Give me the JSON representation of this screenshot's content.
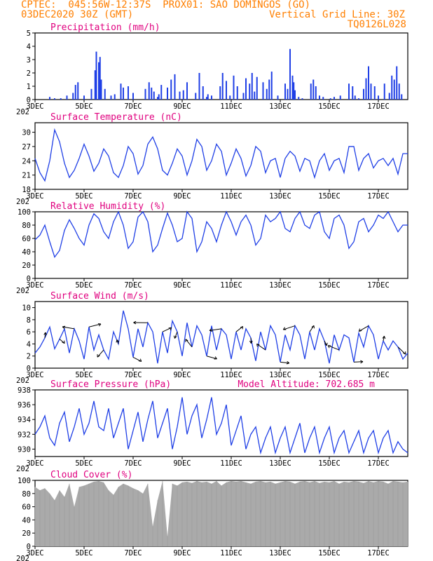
{
  "header": {
    "line1": "CPTEC:  045:56W-12:37S  PROX01: SAO DOMINGOS (GO)",
    "line2_left": "03DEC2020 30Z (GMT)",
    "line2_right": "Vertical Grid Line: 30Z",
    "line3_right": "TQ0126L028"
  },
  "colors": {
    "header": "#ff7f00",
    "title": "#e0007f",
    "line": "#1f3fe6",
    "bar": "#1f3fe6",
    "cloud": "#aaaaaa",
    "wind_arrow": "#000000"
  },
  "x_ticks": [
    "3DEC",
    "5DEC",
    "7DEC",
    "9DEC",
    "11DEC",
    "13DEC",
    "15DEC",
    "17DEC"
  ],
  "x_ticks_extra": "202",
  "chart_data": [
    {
      "id": "precip",
      "type": "bar",
      "title": "Precipitation (mm/h)",
      "ylim": [
        0,
        5
      ],
      "yticks": [
        0,
        1,
        2,
        3,
        4,
        5
      ],
      "x_range_days": [
        3,
        18.2
      ],
      "x": [
        3.6,
        3.8,
        4.05,
        4.3,
        4.55,
        4.65,
        4.75,
        5.0,
        5.3,
        5.45,
        5.5,
        5.6,
        5.65,
        5.7,
        5.85,
        6.1,
        6.25,
        6.5,
        6.6,
        6.8,
        7.0,
        7.5,
        7.65,
        7.75,
        7.85,
        8.0,
        8.05,
        8.15,
        8.4,
        8.55,
        8.7,
        8.9,
        9.05,
        9.2,
        9.55,
        9.7,
        9.85,
        10.0,
        10.05,
        10.2,
        10.55,
        10.65,
        10.8,
        10.95,
        11.1,
        11.25,
        11.5,
        11.6,
        11.75,
        11.85,
        11.95,
        12.05,
        12.3,
        12.45,
        12.55,
        12.65,
        12.9,
        13.2,
        13.3,
        13.4,
        13.5,
        13.55,
        13.6,
        13.75,
        13.9,
        14.25,
        14.35,
        14.45,
        14.6,
        14.75,
        15.05,
        15.2,
        15.45,
        15.8,
        15.95,
        16.05,
        16.2,
        16.4,
        16.5,
        16.6,
        16.7,
        16.85,
        17.0,
        17.25,
        17.45,
        17.55,
        17.65,
        17.75,
        17.85,
        17.95
      ],
      "values": [
        0.2,
        0.1,
        0.1,
        0.3,
        0.5,
        1.1,
        1.3,
        0.3,
        0.8,
        2.2,
        3.6,
        2.8,
        3.2,
        1.5,
        0.8,
        0.3,
        0.4,
        1.2,
        0.9,
        1.0,
        0.5,
        0.8,
        1.3,
        0.9,
        0.6,
        0.2,
        0.4,
        1.1,
        0.9,
        1.5,
        1.9,
        0.6,
        0.7,
        1.3,
        0.5,
        2.0,
        1.0,
        0.2,
        0.4,
        0.3,
        1.0,
        2.0,
        1.4,
        0.3,
        1.8,
        1.0,
        0.5,
        1.6,
        1.2,
        2.0,
        0.6,
        1.7,
        1.3,
        0.8,
        1.5,
        2.1,
        0.3,
        1.2,
        0.8,
        3.8,
        1.8,
        1.3,
        0.7,
        0.2,
        0.1,
        1.2,
        1.5,
        1.0,
        0.3,
        0.2,
        0.1,
        0.2,
        0.3,
        1.2,
        1.0,
        0.3,
        0.1,
        0.8,
        1.6,
        2.5,
        1.2,
        1.0,
        0.3,
        1.2,
        0.5,
        1.8,
        1.5,
        2.5,
        1.2,
        0.4
      ]
    },
    {
      "id": "temp",
      "type": "line",
      "title": "Surface Temperature (nC)",
      "ylim": [
        18,
        32
      ],
      "yticks": [
        18,
        21,
        24,
        27,
        30
      ],
      "x_range_days": [
        3,
        18.2
      ],
      "x": [
        3.0,
        3.2,
        3.4,
        3.6,
        3.8,
        4.0,
        4.2,
        4.4,
        4.6,
        4.8,
        5.0,
        5.2,
        5.4,
        5.6,
        5.8,
        6.0,
        6.2,
        6.4,
        6.6,
        6.8,
        7.0,
        7.2,
        7.4,
        7.6,
        7.8,
        8.0,
        8.2,
        8.4,
        8.6,
        8.8,
        9.0,
        9.2,
        9.4,
        9.6,
        9.8,
        10.0,
        10.2,
        10.4,
        10.6,
        10.8,
        11.0,
        11.2,
        11.4,
        11.6,
        11.8,
        12.0,
        12.2,
        12.4,
        12.6,
        12.8,
        13.0,
        13.2,
        13.4,
        13.6,
        13.8,
        14.0,
        14.2,
        14.4,
        14.6,
        14.8,
        15.0,
        15.2,
        15.4,
        15.6,
        15.8,
        16.0,
        16.2,
        16.4,
        16.6,
        16.8,
        17.0,
        17.2,
        17.4,
        17.6,
        17.8,
        18.0,
        18.2
      ],
      "values": [
        24.5,
        21.5,
        19.8,
        24.0,
        30.5,
        28.0,
        23.5,
        20.5,
        22.0,
        24.5,
        27.5,
        25.0,
        21.8,
        23.5,
        26.5,
        25.0,
        21.5,
        20.5,
        23.0,
        27.0,
        25.5,
        21.2,
        23.0,
        27.5,
        29.0,
        26.5,
        22.0,
        21.0,
        23.5,
        26.5,
        25.0,
        21.0,
        24.0,
        28.5,
        27.0,
        22.0,
        24.0,
        27.5,
        26.0,
        21.0,
        23.5,
        26.5,
        24.5,
        20.8,
        23.0,
        27.0,
        26.0,
        21.5,
        24.0,
        24.5,
        20.5,
        24.5,
        26.0,
        25.0,
        21.8,
        24.5,
        24.0,
        20.5,
        24.0,
        25.5,
        22.0,
        24.0,
        24.5,
        21.5,
        27.0,
        27.0,
        22.0,
        24.5,
        25.5,
        22.5,
        24.0,
        24.5,
        23.0,
        24.5,
        21.2,
        25.5,
        25.5
      ]
    },
    {
      "id": "rh",
      "type": "line",
      "title": "Relative Humidity (%)",
      "ylim": [
        0,
        100
      ],
      "yticks": [
        0,
        20,
        40,
        60,
        80,
        100
      ],
      "x_range_days": [
        3,
        18.2
      ],
      "x": [
        3.0,
        3.2,
        3.4,
        3.6,
        3.8,
        4.0,
        4.2,
        4.4,
        4.6,
        4.8,
        5.0,
        5.2,
        5.4,
        5.6,
        5.8,
        6.0,
        6.2,
        6.4,
        6.6,
        6.8,
        7.0,
        7.2,
        7.4,
        7.6,
        7.8,
        8.0,
        8.2,
        8.4,
        8.6,
        8.8,
        9.0,
        9.2,
        9.4,
        9.6,
        9.8,
        10.0,
        10.2,
        10.4,
        10.6,
        10.8,
        11.0,
        11.2,
        11.4,
        11.6,
        11.8,
        12.0,
        12.2,
        12.4,
        12.6,
        12.8,
        13.0,
        13.2,
        13.4,
        13.6,
        13.8,
        14.0,
        14.2,
        14.4,
        14.6,
        14.8,
        15.0,
        15.2,
        15.4,
        15.6,
        15.8,
        16.0,
        16.2,
        16.4,
        16.6,
        16.8,
        17.0,
        17.2,
        17.4,
        17.6,
        17.8,
        18.0,
        18.2
      ],
      "values": [
        58,
        65,
        80,
        55,
        32,
        42,
        72,
        88,
        75,
        60,
        50,
        80,
        97,
        90,
        70,
        60,
        85,
        100,
        80,
        45,
        55,
        92,
        100,
        85,
        40,
        50,
        75,
        98,
        80,
        55,
        60,
        100,
        90,
        40,
        55,
        85,
        75,
        55,
        80,
        100,
        85,
        65,
        85,
        95,
        80,
        50,
        60,
        95,
        85,
        90,
        100,
        75,
        70,
        90,
        100,
        80,
        75,
        95,
        100,
        70,
        60,
        90,
        95,
        80,
        45,
        55,
        85,
        90,
        70,
        80,
        95,
        90,
        100,
        85,
        70,
        80,
        80
      ]
    },
    {
      "id": "wind",
      "type": "line",
      "title": "Surface Wind (m/s)",
      "ylim": [
        0,
        11
      ],
      "yticks": [
        0,
        2,
        4,
        6,
        8,
        10
      ],
      "x_range_days": [
        3,
        18.2
      ],
      "x": [
        3.0,
        3.2,
        3.4,
        3.6,
        3.8,
        4.0,
        4.2,
        4.4,
        4.6,
        4.8,
        5.0,
        5.2,
        5.4,
        5.6,
        5.8,
        6.0,
        6.2,
        6.4,
        6.6,
        6.8,
        7.0,
        7.2,
        7.4,
        7.6,
        7.8,
        8.0,
        8.2,
        8.4,
        8.6,
        8.8,
        9.0,
        9.2,
        9.4,
        9.6,
        9.8,
        10.0,
        10.2,
        10.4,
        10.6,
        10.8,
        11.0,
        11.2,
        11.4,
        11.6,
        11.8,
        12.0,
        12.2,
        12.4,
        12.6,
        12.8,
        13.0,
        13.2,
        13.4,
        13.6,
        13.8,
        14.0,
        14.2,
        14.4,
        14.6,
        14.8,
        15.0,
        15.2,
        15.4,
        15.6,
        15.8,
        16.0,
        16.2,
        16.4,
        16.6,
        16.8,
        17.0,
        17.2,
        17.4,
        17.6,
        17.8,
        18.0,
        18.2
      ],
      "values": [
        2.5,
        3.5,
        5.0,
        6.8,
        3.2,
        4.8,
        6.5,
        2.5,
        6.5,
        4.5,
        1.5,
        6.8,
        3.0,
        5.5,
        3.0,
        1.5,
        6.0,
        4.0,
        9.5,
        6.5,
        1.8,
        6.5,
        3.5,
        7.5,
        6.0,
        0.8,
        6.0,
        2.5,
        7.8,
        6.0,
        2.0,
        7.5,
        3.5,
        7.0,
        5.5,
        2.0,
        7.0,
        3.0,
        6.5,
        5.5,
        1.5,
        6.0,
        3.0,
        6.5,
        5.0,
        1.2,
        6.0,
        3.0,
        7.0,
        5.5,
        1.0,
        5.5,
        3.0,
        7.0,
        5.5,
        1.5,
        6.0,
        3.0,
        6.5,
        4.5,
        0.8,
        5.5,
        3.0,
        5.5,
        5.0,
        1.0,
        5.8,
        3.5,
        7.0,
        5.5,
        1.5,
        4.5,
        3.0,
        4.5,
        3.5,
        1.5,
        2.5
      ],
      "arrows_note": "wind direction arrows drawn along the series"
    },
    {
      "id": "pres",
      "type": "line",
      "title": "Surface Pressure (hPa)",
      "subtitle": "Model Altitude: 702.685  m",
      "ylim": [
        929,
        938
      ],
      "yticks": [
        930,
        932,
        934,
        936,
        938
      ],
      "x_range_days": [
        3,
        18.2
      ],
      "x": [
        3.0,
        3.2,
        3.4,
        3.6,
        3.8,
        4.0,
        4.2,
        4.4,
        4.6,
        4.8,
        5.0,
        5.2,
        5.4,
        5.6,
        5.8,
        6.0,
        6.2,
        6.4,
        6.6,
        6.8,
        7.0,
        7.2,
        7.4,
        7.6,
        7.8,
        8.0,
        8.2,
        8.4,
        8.6,
        8.8,
        9.0,
        9.2,
        9.4,
        9.6,
        9.8,
        10.0,
        10.2,
        10.4,
        10.6,
        10.8,
        11.0,
        11.2,
        11.4,
        11.6,
        11.8,
        12.0,
        12.2,
        12.4,
        12.6,
        12.8,
        13.0,
        13.2,
        13.4,
        13.6,
        13.8,
        14.0,
        14.2,
        14.4,
        14.6,
        14.8,
        15.0,
        15.2,
        15.4,
        15.6,
        15.8,
        16.0,
        16.2,
        16.4,
        16.6,
        16.8,
        17.0,
        17.2,
        17.4,
        17.6,
        17.8,
        18.0,
        18.2
      ],
      "values": [
        932.0,
        933.0,
        934.5,
        931.5,
        930.5,
        933.5,
        935.0,
        931.0,
        933.0,
        935.5,
        932.0,
        933.5,
        936.5,
        933.0,
        932.5,
        935.5,
        931.5,
        933.5,
        935.5,
        930.0,
        932.5,
        935.0,
        931.0,
        934.0,
        936.5,
        931.5,
        933.5,
        935.5,
        930.0,
        933.0,
        937.0,
        932.0,
        934.5,
        936.0,
        931.5,
        934.0,
        937.0,
        932.0,
        933.5,
        936.0,
        930.5,
        932.5,
        934.5,
        930.0,
        932.0,
        933.0,
        929.5,
        931.5,
        933.0,
        929.5,
        931.5,
        933.0,
        929.5,
        931.5,
        933.5,
        929.5,
        931.5,
        933.0,
        929.5,
        931.5,
        933.0,
        929.5,
        931.5,
        932.5,
        929.5,
        931.0,
        932.5,
        929.5,
        931.5,
        932.5,
        929.5,
        931.5,
        932.5,
        929.5,
        931.0,
        930.0,
        929.5
      ]
    },
    {
      "id": "cloud",
      "type": "area",
      "title": "Cloud Cover (%)",
      "ylim": [
        0,
        100
      ],
      "yticks": [
        0,
        20,
        40,
        60,
        80,
        100
      ],
      "x_range_days": [
        3,
        18.2
      ],
      "x": [
        3.0,
        3.2,
        3.4,
        3.6,
        3.8,
        4.0,
        4.2,
        4.4,
        4.6,
        4.8,
        5.0,
        5.2,
        5.4,
        5.6,
        5.8,
        6.0,
        6.2,
        6.4,
        6.6,
        6.8,
        7.0,
        7.2,
        7.4,
        7.6,
        7.8,
        8.0,
        8.2,
        8.4,
        8.6,
        8.8,
        9.0,
        9.2,
        9.4,
        9.6,
        9.8,
        10.0,
        10.2,
        10.4,
        10.6,
        10.8,
        11.0,
        11.2,
        11.4,
        11.6,
        11.8,
        12.0,
        12.2,
        12.4,
        12.6,
        12.8,
        13.0,
        13.2,
        13.4,
        13.6,
        13.8,
        14.0,
        14.2,
        14.4,
        14.6,
        14.8,
        15.0,
        15.2,
        15.4,
        15.6,
        15.8,
        16.0,
        16.2,
        16.4,
        16.6,
        16.8,
        17.0,
        17.2,
        17.4,
        17.6,
        17.8,
        18.0,
        18.2
      ],
      "values": [
        90,
        85,
        88,
        80,
        70,
        85,
        75,
        95,
        60,
        90,
        92,
        95,
        98,
        99,
        97,
        85,
        78,
        90,
        95,
        92,
        88,
        85,
        80,
        95,
        30,
        70,
        99,
        15,
        95,
        92,
        97,
        98,
        96,
        99,
        97,
        98,
        95,
        99,
        92,
        97,
        99,
        98,
        99,
        97,
        95,
        98,
        99,
        97,
        98,
        95,
        97,
        99,
        98,
        95,
        98,
        99,
        97,
        99,
        96,
        98,
        97,
        99,
        95,
        98,
        97,
        99,
        98,
        96,
        99,
        97,
        99,
        98,
        95,
        99,
        98,
        97,
        98
      ]
    }
  ]
}
